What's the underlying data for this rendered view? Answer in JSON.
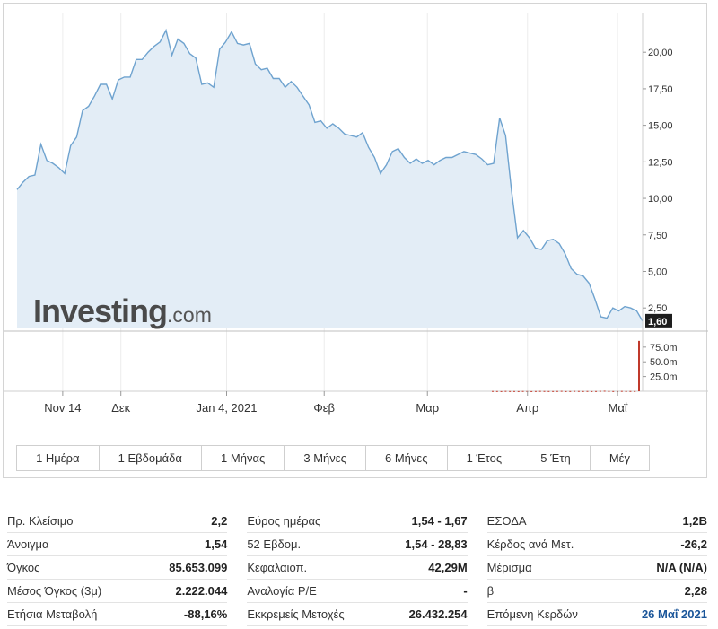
{
  "watermark": {
    "brand": "Investing",
    "suffix": ".com"
  },
  "colors": {
    "line": "#6fa3cf",
    "area": "#e3edf6",
    "volume": "#c0392b",
    "last_price_tag": "#1e1e1e"
  },
  "chart_data": {
    "type": "area",
    "y_ticks": [
      "20,00",
      "17,50",
      "15,00",
      "12,50",
      "10,00",
      "7,50",
      "5,00",
      "2,50"
    ],
    "ylim": [
      1.1,
      22.1
    ],
    "last_value": 1.6,
    "last_value_label": "1,60",
    "x_ticks": [
      "Nov 14",
      "Δεκ",
      "Jan 4, 2021",
      "Φεβ",
      "Μαρ",
      "Απρ",
      "Μαΐ"
    ],
    "x_tick_positions": [
      0.073,
      0.166,
      0.335,
      0.491,
      0.656,
      0.816,
      0.96
    ],
    "values": [
      10.6,
      11.1,
      11.5,
      11.6,
      13.7,
      12.6,
      12.4,
      12.1,
      11.7,
      13.6,
      14.2,
      16.0,
      16.3,
      17.0,
      17.8,
      17.8,
      16.8,
      18.1,
      18.3,
      18.3,
      19.5,
      19.5,
      20.0,
      20.4,
      20.7,
      21.5,
      19.8,
      20.9,
      20.6,
      19.9,
      19.6,
      17.8,
      17.9,
      17.6,
      20.2,
      20.7,
      21.4,
      20.6,
      20.5,
      20.6,
      19.2,
      18.8,
      18.9,
      18.2,
      18.2,
      17.6,
      18.0,
      17.6,
      17.0,
      16.4,
      15.2,
      15.3,
      14.8,
      15.1,
      14.8,
      14.4,
      14.3,
      14.2,
      14.5,
      13.5,
      12.8,
      11.7,
      12.3,
      13.2,
      13.4,
      12.8,
      12.4,
      12.7,
      12.4,
      12.6,
      12.3,
      12.6,
      12.8,
      12.8,
      13.0,
      13.2,
      13.1,
      13.0,
      12.7,
      12.3,
      12.4,
      15.5,
      14.3,
      10.5,
      7.3,
      7.8,
      7.3,
      6.6,
      6.5,
      7.1,
      7.2,
      6.9,
      6.2,
      5.2,
      4.8,
      4.7,
      4.2,
      3.1,
      1.9,
      1.8,
      2.5,
      2.3,
      2.6,
      2.5,
      2.3,
      1.6
    ],
    "volume_ticks": [
      "75.0m",
      "50.0m",
      "25.0m"
    ],
    "volume_max": 85.653099,
    "volume_values": [
      0.4,
      0.3,
      0.2,
      0.5,
      0.3,
      0.3,
      0.2,
      0.4,
      0.3,
      0.2,
      0.3,
      0.5,
      0.4,
      0.3,
      0.3,
      0.4,
      0.6,
      0.2,
      0.3,
      0.5,
      0.4,
      0.3,
      0.4,
      0.2,
      0.3,
      0.6,
      0.8,
      0.4,
      0.3,
      0.2,
      0.5,
      0.3,
      0.4,
      0.3,
      85.65
    ]
  },
  "periods": [
    "1 Ημέρα",
    "1 Εβδομάδα",
    "1 Μήνας",
    "3 Μήνες",
    "6 Μήνες",
    "1 Έτος",
    "5 Έτη",
    "Μέγ"
  ],
  "stats": [
    [
      {
        "label": "Πρ. Κλείσιμο",
        "value": "2,2"
      },
      {
        "label": "Άνοιγμα",
        "value": "1,54"
      },
      {
        "label": "Όγκος",
        "value": "85.653.099"
      },
      {
        "label": "Μέσος Όγκος (3μ)",
        "value": "2.222.044"
      },
      {
        "label": "Ετήσια Μεταβολή",
        "value": "-88,16%"
      }
    ],
    [
      {
        "label": "Εύρος ημέρας",
        "value": "1,54 - 1,67"
      },
      {
        "label": "52 Εβδομ.",
        "value": "1,54 - 28,83"
      },
      {
        "label": "Κεφαλαιοπ.",
        "value": "42,29M"
      },
      {
        "label": "Αναλογία P/E",
        "value": "-"
      },
      {
        "label": "Εκκρεμείς Μετοχές",
        "value": "26.432.254"
      }
    ],
    [
      {
        "label": "ΕΣΟΔΑ",
        "value": "1,2B"
      },
      {
        "label": "Κέρδος ανά Μετ.",
        "value": "-26,2"
      },
      {
        "label": "Μέρισμα",
        "value": "N/A (N/A)"
      },
      {
        "label": "β",
        "value": "2,28"
      },
      {
        "label": "Επόμενη Κερδών",
        "value": "26 Μαΐ 2021",
        "link": true
      }
    ]
  ]
}
